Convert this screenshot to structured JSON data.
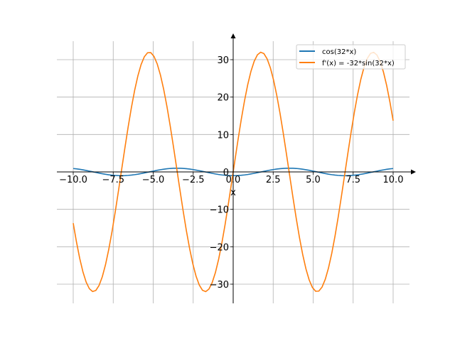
{
  "chart_data": {
    "type": "line",
    "title": "",
    "xlabel": "x",
    "ylabel": "",
    "xlim": [
      -11,
      11
    ],
    "ylim": [
      -35,
      35
    ],
    "grid": true,
    "legend_position": "top-right",
    "x_ticks": [
      -10.0,
      -7.5,
      -5.0,
      -2.5,
      0.0,
      2.5,
      5.0,
      7.5,
      10.0
    ],
    "x_tick_labels": [
      "−10.0",
      "−7.5",
      "−5.0",
      "−2.5",
      "0.0",
      "2.5",
      "5.0",
      "7.5",
      "10.0"
    ],
    "y_ticks": [
      -30,
      -20,
      -10,
      0,
      10,
      20,
      30
    ],
    "y_tick_labels": [
      "−30",
      "−20",
      "−10",
      "0",
      "10",
      "20",
      "30"
    ],
    "sampling": {
      "x_start": -10,
      "x_end": 10,
      "n_points": 100
    },
    "series": [
      {
        "name": "cos(32*x)",
        "expression": "cos(32*x)",
        "kind": "cos",
        "amplitude": 1,
        "frequency": 32,
        "color": "#1f77b4"
      },
      {
        "name": "f'(x) = -32*sin(32*x)",
        "expression": "-32*sin(32*x)",
        "kind": "neg_sin",
        "amplitude": 32,
        "frequency": 32,
        "color": "#ff7f0e"
      }
    ]
  }
}
